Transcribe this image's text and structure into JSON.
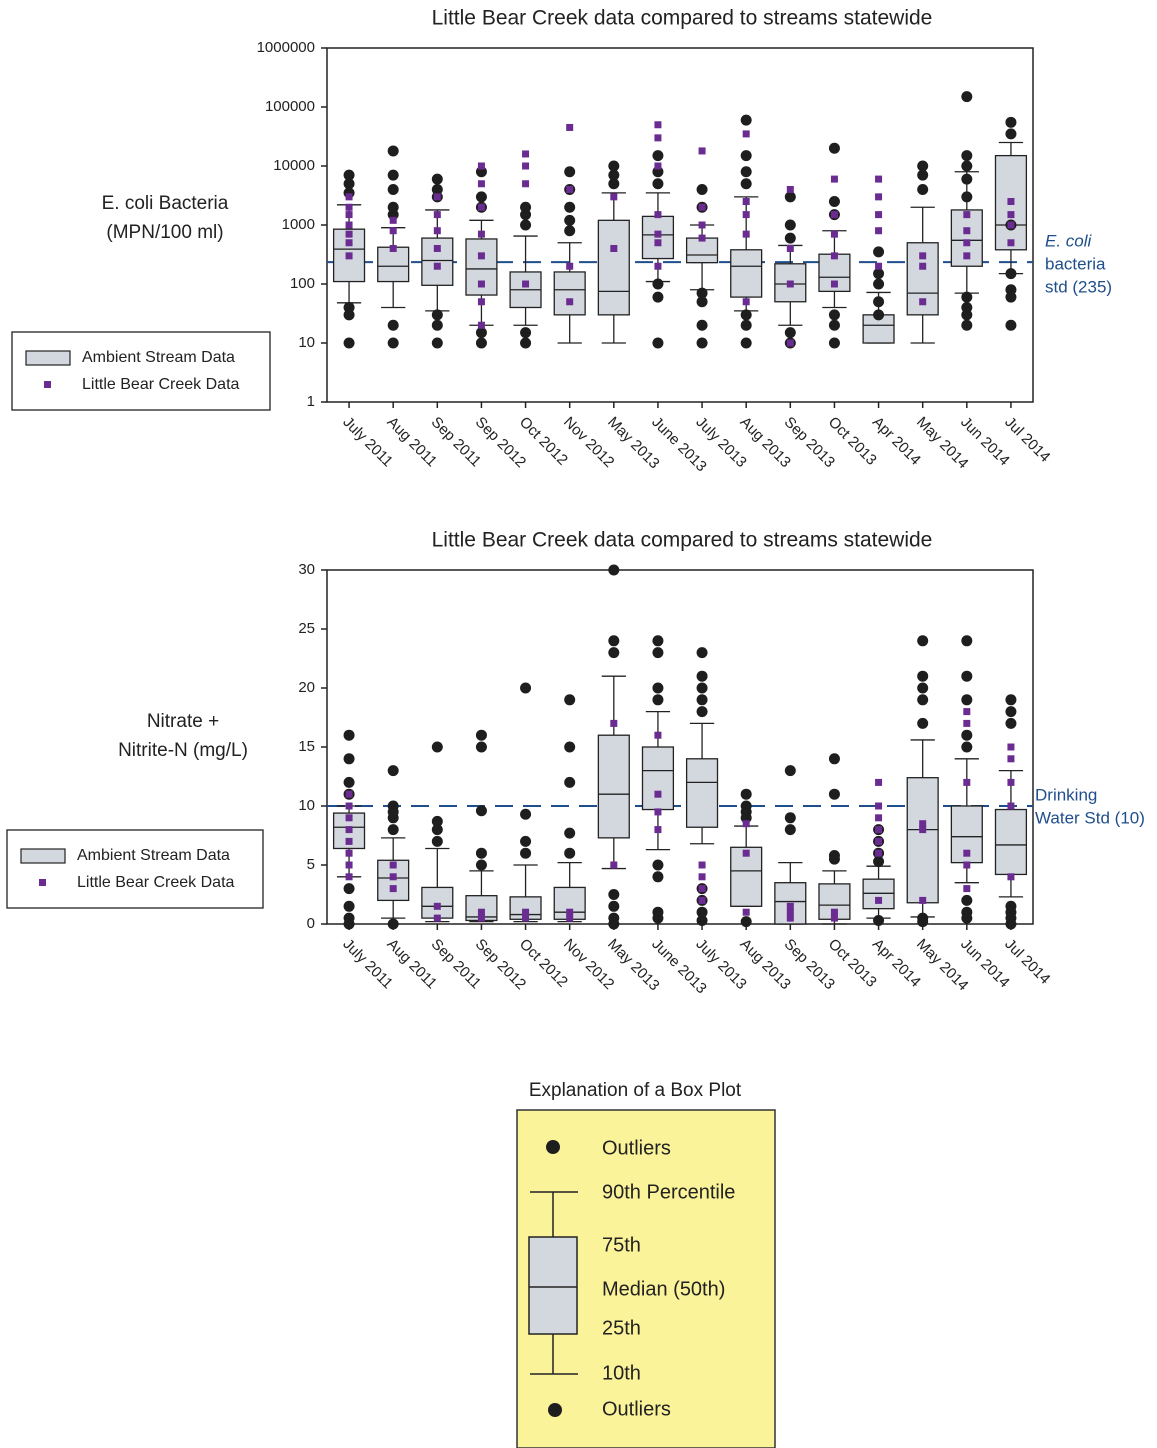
{
  "chart_data": [
    {
      "type": "box",
      "title": "Little Bear Creek data compared to streams statewide",
      "ylabel": [
        "E. coli Bacteria",
        "(MPN/100 ml)"
      ],
      "yscale": "log",
      "ylim": [
        1,
        1000000
      ],
      "yticks": [
        1,
        10,
        100,
        1000,
        10000,
        100000,
        1000000
      ],
      "categories": [
        "July 2011",
        "Aug 2011",
        "Sep 2011",
        "Sep 2012",
        "Oct 2012",
        "Nov 2012",
        "May 2013",
        "June 2013",
        "July 2013",
        "Aug 2013",
        "Sep 2013",
        "Oct 2013",
        "Apr 2014",
        "May 2014",
        "Jun 2014",
        "Jul 2014"
      ],
      "box_series": {
        "name": "Ambient Stream Data",
        "color": "#d3d8df",
        "outlier_color": "#1e1e1e",
        "boxes": [
          {
            "whislo": 48,
            "q1": 110,
            "med": 390,
            "q3": 850,
            "whishi": 2200,
            "fliers": [
              7000,
              5000,
              3500,
              30,
              40,
              10
            ]
          },
          {
            "whislo": 40,
            "q1": 110,
            "med": 200,
            "q3": 420,
            "whishi": 900,
            "fliers": [
              18000,
              7000,
              4000,
              2000,
              1500,
              20,
              10
            ]
          },
          {
            "whislo": 35,
            "q1": 95,
            "med": 250,
            "q3": 600,
            "whishi": 1800,
            "fliers": [
              6000,
              4000,
              3000,
              30,
              20,
              10
            ]
          },
          {
            "whislo": 20,
            "q1": 65,
            "med": 180,
            "q3": 580,
            "whishi": 1200,
            "fliers": [
              8000,
              3000,
              2000,
              15,
              10
            ]
          },
          {
            "whislo": 20,
            "q1": 40,
            "med": 80,
            "q3": 160,
            "whishi": 650,
            "fliers": [
              2000,
              1500,
              1000,
              15,
              10
            ]
          },
          {
            "whislo": 10,
            "q1": 30,
            "med": 80,
            "q3": 160,
            "whishi": 500,
            "fliers": [
              8000,
              4000,
              2000,
              1200,
              800
            ]
          },
          {
            "whislo": 10,
            "q1": 30,
            "med": 75,
            "q3": 1200,
            "whishi": 3500,
            "fliers": [
              10000,
              7000,
              5000
            ]
          },
          {
            "whislo": 110,
            "q1": 270,
            "med": 680,
            "q3": 1400,
            "whishi": 3500,
            "fliers": [
              15000,
              8000,
              5000,
              100,
              60,
              10
            ]
          },
          {
            "whislo": 80,
            "q1": 230,
            "med": 310,
            "q3": 600,
            "whishi": 1000,
            "fliers": [
              4000,
              2000,
              70,
              50,
              20,
              10
            ]
          },
          {
            "whislo": 35,
            "q1": 60,
            "med": 200,
            "q3": 380,
            "whishi": 3000,
            "fliers": [
              60000,
              15000,
              8000,
              5000,
              30,
              20,
              10
            ]
          },
          {
            "whislo": 20,
            "q1": 50,
            "med": 100,
            "q3": 220,
            "whishi": 450,
            "fliers": [
              3000,
              1000,
              600,
              15,
              10
            ]
          },
          {
            "whislo": 40,
            "q1": 75,
            "med": 130,
            "q3": 320,
            "whishi": 800,
            "fliers": [
              20000,
              2500,
              1500,
              30,
              20,
              10
            ]
          },
          {
            "whislo": 10,
            "q1": 10,
            "med": 20,
            "q3": 30,
            "whishi": 72,
            "fliers": [
              350,
              150,
              100,
              50,
              30
            ]
          },
          {
            "whislo": 10,
            "q1": 30,
            "med": 70,
            "q3": 500,
            "whishi": 2000,
            "fliers": [
              10000,
              7000,
              4000
            ]
          },
          {
            "whislo": 70,
            "q1": 200,
            "med": 550,
            "q3": 1800,
            "whishi": 8000,
            "fliers": [
              150000,
              15000,
              10000,
              6000,
              3000,
              60,
              40,
              30,
              20
            ]
          },
          {
            "whislo": 150,
            "q1": 380,
            "med": 1000,
            "q3": 15000,
            "whishi": 25000,
            "fliers": [
              55000,
              35000,
              1000,
              150,
              80,
              60,
              20
            ]
          }
        ]
      },
      "point_series": {
        "name": "Little Bear Creek Data",
        "color": "#6a2c91",
        "values": [
          [
            3000,
            2000,
            1500,
            1000,
            700,
            500,
            300
          ],
          [
            1200,
            800,
            400
          ],
          [
            3000,
            1500,
            800,
            400,
            200
          ],
          [
            10000,
            5000,
            2000,
            700,
            300,
            100,
            50,
            20
          ],
          [
            16000,
            10000,
            5000,
            100
          ],
          [
            45000,
            4000,
            200,
            50
          ],
          [
            3000,
            400
          ],
          [
            50000,
            30000,
            10000,
            1500,
            700,
            500,
            200
          ],
          [
            18000,
            2000,
            1000,
            600
          ],
          [
            35000,
            2500,
            1500,
            700,
            50
          ],
          [
            4000,
            400,
            100,
            10
          ],
          [
            6000,
            1500,
            700,
            300,
            100
          ],
          [
            6000,
            3000,
            1500,
            800,
            200
          ],
          [
            300,
            200,
            50
          ],
          [
            1500,
            800,
            500,
            300
          ],
          [
            2500,
            1500,
            1000,
            500
          ]
        ]
      },
      "ref_line": {
        "value": 235,
        "label": [
          "E. coli",
          "bacteria",
          "std (235)"
        ],
        "color": "#1f4e8c"
      }
    },
    {
      "type": "box",
      "title": "Little Bear Creek data compared to streams statewide",
      "ylabel": [
        "Nitrate +",
        "Nitrite-N (mg/L)"
      ],
      "yscale": "linear",
      "ylim": [
        0,
        30
      ],
      "yticks": [
        0,
        5,
        10,
        15,
        20,
        25,
        30
      ],
      "categories": [
        "July 2011",
        "Aug 2011",
        "Sep 2011",
        "Sep 2012",
        "Oct 2012",
        "Nov 2012",
        "May 2013",
        "June 2013",
        "July 2013",
        "Aug 2013",
        "Sep 2013",
        "Oct 2013",
        "Apr 2014",
        "May 2014",
        "Jun 2014",
        "Jul 2014"
      ],
      "box_series": {
        "name": "Ambient Stream Data",
        "color": "#d3d8df",
        "outlier_color": "#1e1e1e",
        "boxes": [
          {
            "whislo": 4,
            "q1": 6.4,
            "med": 8.2,
            "q3": 9.4,
            "whishi": 10,
            "fliers": [
              16,
              14,
              12,
              11,
              3,
              1.5,
              0.5,
              0
            ]
          },
          {
            "whislo": 0.5,
            "q1": 2,
            "med": 3.9,
            "q3": 5.4,
            "whishi": 7.3,
            "fliers": [
              13,
              10,
              9.5,
              9,
              8,
              0
            ]
          },
          {
            "whislo": 0.2,
            "q1": 0.5,
            "med": 1.5,
            "q3": 3.1,
            "whishi": 6.4,
            "fliers": [
              15,
              8.7,
              8,
              7
            ]
          },
          {
            "whislo": 0.2,
            "q1": 0.3,
            "med": 0.6,
            "q3": 2.4,
            "whishi": 4.5,
            "fliers": [
              16,
              15,
              9.6,
              6,
              5
            ]
          },
          {
            "whislo": 0.2,
            "q1": 0.4,
            "med": 0.8,
            "q3": 2.3,
            "whishi": 5,
            "fliers": [
              20,
              9.3,
              7,
              6
            ]
          },
          {
            "whislo": 0.2,
            "q1": 0.4,
            "med": 1,
            "q3": 3.1,
            "whishi": 5.2,
            "fliers": [
              19,
              15,
              12,
              7.7,
              6
            ]
          },
          {
            "whislo": 4.7,
            "q1": 7.3,
            "med": 11,
            "q3": 16,
            "whishi": 21,
            "fliers": [
              30,
              24,
              23,
              2.5,
              1.5,
              0.5,
              0
            ]
          },
          {
            "whislo": 6.3,
            "q1": 9.7,
            "med": 13,
            "q3": 15,
            "whishi": 18,
            "fliers": [
              24,
              23,
              20,
              19,
              5,
              4,
              1,
              0.5
            ]
          },
          {
            "whislo": 6.8,
            "q1": 8.2,
            "med": 12,
            "q3": 14,
            "whishi": 17,
            "fliers": [
              23,
              21,
              20,
              19,
              18,
              3,
              2,
              1,
              0.3
            ]
          },
          {
            "whislo": 1.5,
            "q1": 1.5,
            "med": 4.5,
            "q3": 6.5,
            "whishi": 8.3,
            "fliers": [
              11,
              10,
              9.5,
              9,
              0.2
            ]
          },
          {
            "whislo": 0,
            "q1": 0,
            "med": 1.9,
            "q3": 3.5,
            "whishi": 5.2,
            "fliers": [
              13,
              9,
              8
            ]
          },
          {
            "whislo": 0,
            "q1": 0.4,
            "med": 1.6,
            "q3": 3.4,
            "whishi": 4.5,
            "fliers": [
              14,
              11,
              5.8,
              5.5
            ]
          },
          {
            "whislo": 0.5,
            "q1": 1.3,
            "med": 2.6,
            "q3": 3.8,
            "whishi": 4.9,
            "fliers": [
              8,
              7,
              6,
              5.3,
              0.3
            ]
          },
          {
            "whislo": 0.6,
            "q1": 1.8,
            "med": 8,
            "q3": 12.4,
            "whishi": 15.6,
            "fliers": [
              24,
              21,
              20,
              19,
              17,
              0.5,
              0.2
            ]
          },
          {
            "whislo": 3.5,
            "q1": 5.2,
            "med": 7.4,
            "q3": 10,
            "whishi": 14,
            "fliers": [
              24,
              21,
              19,
              16,
              15,
              2,
              1,
              0.5
            ]
          },
          {
            "whislo": 2.3,
            "q1": 4.2,
            "med": 6.7,
            "q3": 9.7,
            "whishi": 13,
            "fliers": [
              19,
              18,
              17,
              1.5,
              1,
              0.5,
              0
            ]
          }
        ]
      },
      "point_series": {
        "name": "Little Bear Creek Data",
        "color": "#6a2c91",
        "values": [
          [
            11,
            10,
            9,
            8,
            7,
            6,
            5,
            4
          ],
          [
            5,
            4,
            3
          ],
          [
            1.5,
            0.5
          ],
          [
            1,
            0.5
          ],
          [
            1,
            0.5
          ],
          [
            1,
            0.5
          ],
          [
            17,
            5
          ],
          [
            16,
            11,
            9.5,
            8
          ],
          [
            5,
            4,
            3,
            2
          ],
          [
            8.5,
            6,
            1
          ],
          [
            1.5,
            1,
            0.5
          ],
          [
            1,
            0.5
          ],
          [
            12,
            10,
            9,
            8,
            7,
            6,
            2
          ],
          [
            8.5,
            8,
            2
          ],
          [
            18,
            17,
            12,
            6,
            5,
            3
          ],
          [
            15,
            14,
            12,
            10,
            4
          ]
        ]
      },
      "ref_line": {
        "value": 10,
        "label": [
          "Drinking",
          "Water Std (10)"
        ],
        "color": "#1f4e8c"
      }
    }
  ],
  "explanation": {
    "title": "Explanation of a Box Plot",
    "labels": [
      "Outliers",
      "90th Percentile",
      "75th",
      "Median (50th)",
      "25th",
      "10th",
      "Outliers"
    ]
  }
}
